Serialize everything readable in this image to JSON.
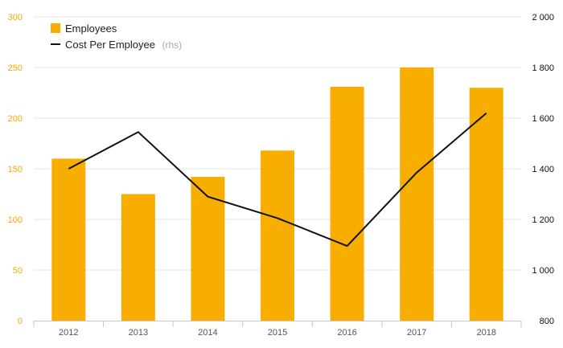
{
  "chart_data": {
    "type": "bar",
    "categories": [
      "2012",
      "2013",
      "2014",
      "2015",
      "2016",
      "2017",
      "2018"
    ],
    "series": [
      {
        "name": "Employees",
        "kind": "bar",
        "axis": "left",
        "color": "#f8ae00",
        "values": [
          160,
          125,
          142,
          168,
          231,
          250,
          230
        ]
      },
      {
        "name": "Cost Per Employee",
        "kind": "line",
        "axis": "right",
        "color": "#111111",
        "values": [
          1400,
          1545,
          1290,
          1205,
          1095,
          1385,
          1620
        ]
      }
    ],
    "left_axis": {
      "min": 0,
      "max": 300,
      "ticks": [
        0,
        50,
        100,
        150,
        200,
        250,
        300
      ],
      "color": "#f5a800"
    },
    "right_axis": {
      "min": 800,
      "max": 2000,
      "ticks": [
        "800",
        "1 000",
        "1 200",
        "1 400",
        "1 600",
        "1 800",
        "2 000"
      ],
      "tick_values": [
        800,
        1000,
        1200,
        1400,
        1600,
        1800,
        2000
      ]
    },
    "grid": true,
    "legend": {
      "placement": "top-left",
      "items": [
        {
          "label": "Employees",
          "suffix": "",
          "marker": "square",
          "color": "#f8ae00"
        },
        {
          "label": "Cost Per Employee",
          "suffix": "(rhs)",
          "marker": "line",
          "color": "#111111"
        }
      ]
    },
    "title": "",
    "xlabel": "",
    "ylabel": ""
  }
}
